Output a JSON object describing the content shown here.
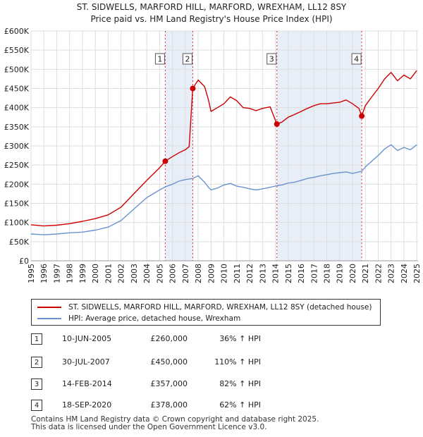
{
  "chart_data": {
    "type": "line",
    "title": "ST. SIDWELLS, MARFORD HILL, MARFORD, WREXHAM, LL12 8SY",
    "subtitle": "Price paid vs. HM Land Registry's House Price Index (HPI)",
    "xlabel": "",
    "ylabel": "",
    "xlim": [
      1995,
      2025.1
    ],
    "ylim": [
      0,
      600000
    ],
    "x_ticks": [
      "1995",
      "1996",
      "1997",
      "1998",
      "1999",
      "2000",
      "2001",
      "2002",
      "2003",
      "2004",
      "2005",
      "2006",
      "2007",
      "2008",
      "2009",
      "2010",
      "2011",
      "2012",
      "2013",
      "2014",
      "2015",
      "2016",
      "2017",
      "2018",
      "2019",
      "2020",
      "2021",
      "2022",
      "2023",
      "2024",
      "2025"
    ],
    "y_ticks": [
      "£0",
      "£50K",
      "£100K",
      "£150K",
      "£200K",
      "£250K",
      "£300K",
      "£350K",
      "£400K",
      "£450K",
      "£500K",
      "£550K",
      "£600K"
    ],
    "grid": true,
    "series": [
      {
        "name": "ST. SIDWELLS, MARFORD HILL, MARFORD, WREXHAM, LL12 8SY (detached house)",
        "color": "#cc0000",
        "points": [
          [
            1995,
            94000
          ],
          [
            1996,
            91000
          ],
          [
            1997,
            93000
          ],
          [
            1998,
            97000
          ],
          [
            1999,
            103000
          ],
          [
            2000,
            110000
          ],
          [
            2001,
            120000
          ],
          [
            2002,
            140000
          ],
          [
            2003,
            175000
          ],
          [
            2004,
            210000
          ],
          [
            2005.0,
            243000
          ],
          [
            2005.44,
            260000
          ],
          [
            2006,
            272000
          ],
          [
            2006.5,
            282000
          ],
          [
            2007.0,
            290000
          ],
          [
            2007.3,
            298000
          ],
          [
            2007.58,
            450000
          ],
          [
            2008,
            472000
          ],
          [
            2008.5,
            455000
          ],
          [
            2008.8,
            420000
          ],
          [
            2009,
            390000
          ],
          [
            2009.5,
            400000
          ],
          [
            2010,
            410000
          ],
          [
            2010.5,
            428000
          ],
          [
            2011,
            418000
          ],
          [
            2011.5,
            400000
          ],
          [
            2012,
            398000
          ],
          [
            2012.5,
            392000
          ],
          [
            2013,
            398000
          ],
          [
            2013.6,
            402000
          ],
          [
            2014.12,
            357000
          ],
          [
            2014.5,
            362000
          ],
          [
            2015,
            375000
          ],
          [
            2015.5,
            382000
          ],
          [
            2016,
            390000
          ],
          [
            2016.5,
            398000
          ],
          [
            2017,
            405000
          ],
          [
            2017.5,
            410000
          ],
          [
            2018,
            410000
          ],
          [
            2018.5,
            412000
          ],
          [
            2019,
            414000
          ],
          [
            2019.5,
            420000
          ],
          [
            2020.0,
            410000
          ],
          [
            2020.5,
            398000
          ],
          [
            2020.72,
            378000
          ],
          [
            2021,
            405000
          ],
          [
            2021.5,
            428000
          ],
          [
            2022,
            450000
          ],
          [
            2022.5,
            475000
          ],
          [
            2023,
            492000
          ],
          [
            2023.5,
            470000
          ],
          [
            2024,
            485000
          ],
          [
            2024.5,
            475000
          ],
          [
            2025,
            497000
          ]
        ]
      },
      {
        "name": "HPI: Average price, detached house, Wrexham",
        "color": "#6a93cf",
        "points": [
          [
            1995,
            70000
          ],
          [
            1996,
            68000
          ],
          [
            1997,
            70000
          ],
          [
            1998,
            73000
          ],
          [
            1999,
            75000
          ],
          [
            2000,
            80000
          ],
          [
            2001,
            88000
          ],
          [
            2002,
            105000
          ],
          [
            2003,
            135000
          ],
          [
            2004,
            165000
          ],
          [
            2005.0,
            185000
          ],
          [
            2005.44,
            193000
          ],
          [
            2006,
            200000
          ],
          [
            2006.5,
            208000
          ],
          [
            2007.0,
            212000
          ],
          [
            2007.58,
            215000
          ],
          [
            2008,
            222000
          ],
          [
            2008.5,
            205000
          ],
          [
            2008.8,
            192000
          ],
          [
            2009,
            185000
          ],
          [
            2009.5,
            190000
          ],
          [
            2010,
            198000
          ],
          [
            2010.5,
            202000
          ],
          [
            2011,
            195000
          ],
          [
            2011.5,
            192000
          ],
          [
            2012,
            188000
          ],
          [
            2012.5,
            185000
          ],
          [
            2013,
            188000
          ],
          [
            2013.6,
            192000
          ],
          [
            2014.12,
            196000
          ],
          [
            2014.5,
            198000
          ],
          [
            2015,
            203000
          ],
          [
            2015.5,
            205000
          ],
          [
            2016,
            210000
          ],
          [
            2016.5,
            215000
          ],
          [
            2017,
            218000
          ],
          [
            2017.5,
            222000
          ],
          [
            2018,
            225000
          ],
          [
            2018.5,
            228000
          ],
          [
            2019,
            230000
          ],
          [
            2019.5,
            232000
          ],
          [
            2020.0,
            228000
          ],
          [
            2020.5,
            232000
          ],
          [
            2020.72,
            234000
          ],
          [
            2021,
            245000
          ],
          [
            2021.5,
            260000
          ],
          [
            2022,
            275000
          ],
          [
            2022.5,
            292000
          ],
          [
            2023,
            303000
          ],
          [
            2023.5,
            288000
          ],
          [
            2024,
            296000
          ],
          [
            2024.5,
            290000
          ],
          [
            2025,
            303000
          ]
        ]
      }
    ],
    "sales": [
      {
        "label": "1",
        "x": 2005.44,
        "value": 260000
      },
      {
        "label": "2",
        "x": 2007.58,
        "value": 450000
      },
      {
        "label": "3",
        "x": 2014.12,
        "value": 357000
      },
      {
        "label": "4",
        "x": 2020.72,
        "value": 378000
      }
    ],
    "shaded_spans": [
      [
        2005.44,
        2007.58
      ],
      [
        2014.12,
        2020.72
      ]
    ]
  },
  "legend": {
    "property_label": "ST. SIDWELLS, MARFORD HILL, MARFORD, WREXHAM, LL12 8SY (detached house)",
    "hpi_label": "HPI: Average price, detached house, Wrexham",
    "property_color": "#cc0000",
    "hpi_color": "#6a93cf"
  },
  "sales_table": [
    {
      "num": "1",
      "date": "10-JUN-2005",
      "price": "£260,000",
      "hpi": "36% ↑ HPI"
    },
    {
      "num": "2",
      "date": "30-JUL-2007",
      "price": "£450,000",
      "hpi": "110% ↑ HPI"
    },
    {
      "num": "3",
      "date": "14-FEB-2014",
      "price": "£357,000",
      "hpi": "82% ↑ HPI"
    },
    {
      "num": "4",
      "date": "18-SEP-2020",
      "price": "£378,000",
      "hpi": "62% ↑ HPI"
    }
  ],
  "footer": {
    "line1": "Contains HM Land Registry data © Crown copyright and database right 2025.",
    "line2": "This data is licensed under the Open Government Licence v3.0."
  }
}
